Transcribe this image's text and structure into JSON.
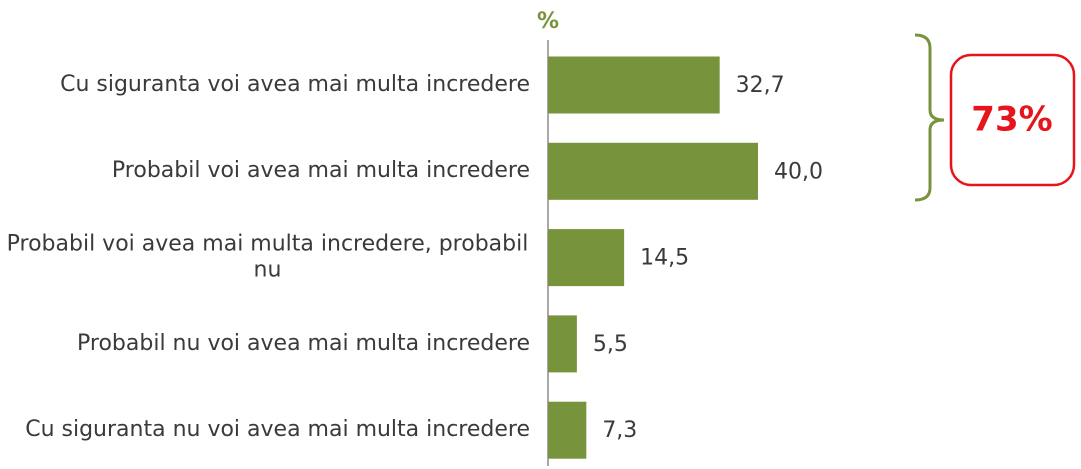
{
  "chart_data": {
    "type": "hbar",
    "axis_label": "%",
    "categories": [
      "Cu siguranta voi avea mai multa incredere",
      "Probabil voi avea mai multa incredere",
      "Probabil voi avea mai multa incredere, probabil nu",
      "Probabil nu voi avea mai multa incredere",
      "Cu siguranta nu voi avea mai multa incredere"
    ],
    "values": [
      32.7,
      40.0,
      14.5,
      5.5,
      7.3
    ],
    "value_labels": [
      "32,7",
      "40,0",
      "14,5",
      "5,5",
      "7,3"
    ],
    "color": "#77933c",
    "xlim": [
      0,
      100
    ],
    "annotation": "73%",
    "annotation_color": "#e8141b"
  }
}
